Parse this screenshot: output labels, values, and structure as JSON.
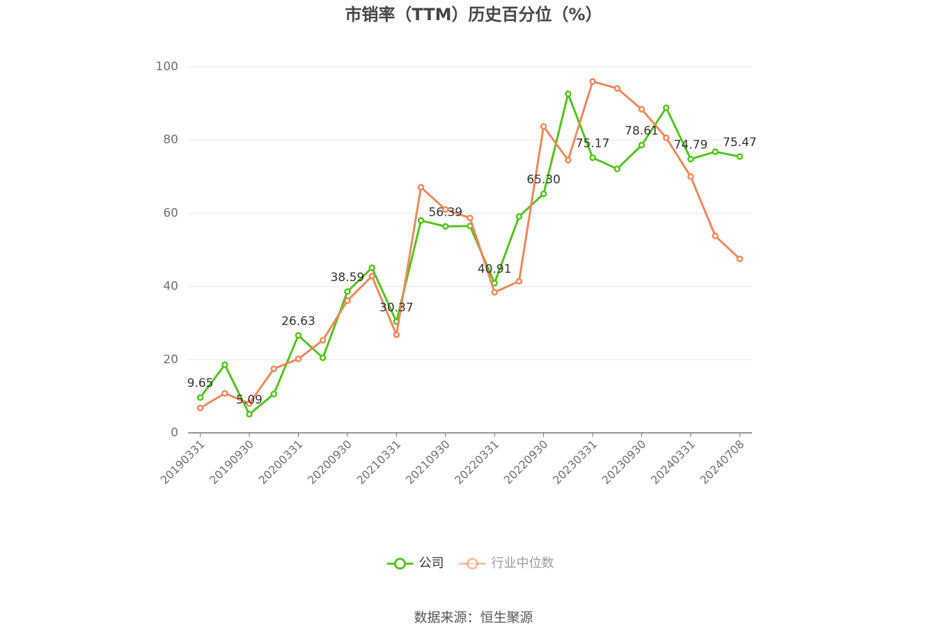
{
  "chart_data": {
    "type": "line",
    "title": "市销率（TTM）历史百分位（%）",
    "categories": [
      "20190331",
      null,
      "20190930",
      null,
      "20200331",
      null,
      "20200930",
      null,
      "20210331",
      null,
      "20210930",
      null,
      "20220331",
      null,
      "20220930",
      null,
      "20230331",
      null,
      "20230930",
      null,
      "20240331",
      null,
      "20240708"
    ],
    "series": [
      {
        "name": "公司",
        "color": "#52c41a",
        "values": [
          9.65,
          18.6,
          5.09,
          10.6,
          26.63,
          20.5,
          38.59,
          45.1,
          30.37,
          58.0,
          56.39,
          56.5,
          40.91,
          59.1,
          65.3,
          92.6,
          75.17,
          72.1,
          78.61,
          88.8,
          74.79,
          76.8,
          75.47
        ],
        "value_labels": [
          "9.65",
          null,
          "5.09",
          null,
          "26.63",
          null,
          "38.59",
          null,
          "30.37",
          null,
          "56.39",
          null,
          "40.91",
          null,
          "65.30",
          null,
          "75.17",
          null,
          "78.61",
          null,
          "74.79",
          null,
          "75.47"
        ]
      },
      {
        "name": "行业中位数",
        "color": "#f0875a",
        "values": [
          6.8,
          10.8,
          8.0,
          17.5,
          20.2,
          25.3,
          36.1,
          42.8,
          26.8,
          67.1,
          61.0,
          58.7,
          38.4,
          41.4,
          83.7,
          74.5,
          96.0,
          94.1,
          88.4,
          80.6,
          70.0,
          53.8,
          47.5
        ]
      }
    ],
    "ylim": [
      0,
      100
    ],
    "yticks": [
      0,
      20,
      40,
      60,
      80,
      100
    ],
    "grid": true,
    "legend": "bottom",
    "source": "数据来源：恒生聚源"
  }
}
